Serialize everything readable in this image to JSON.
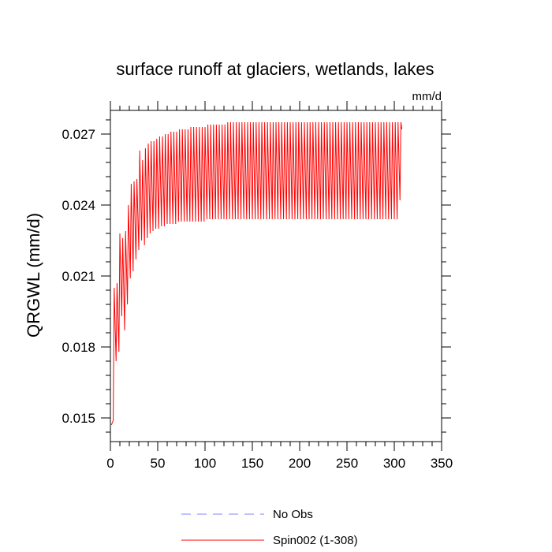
{
  "chart_data": {
    "type": "line",
    "title": "surface runoff at glaciers, wetlands, lakes",
    "units_label": "mm/d",
    "ylabel": "QRGWL  (mm/d)",
    "xlabel": "",
    "xlim": [
      0,
      350
    ],
    "ylim": [
      0.014,
      0.028
    ],
    "x_ticks": [
      0,
      50,
      100,
      150,
      200,
      250,
      300,
      350
    ],
    "x_tick_labels": [
      "0",
      "50",
      "100",
      "150",
      "200",
      "250",
      "300",
      "350"
    ],
    "y_ticks": [
      0.015,
      0.018,
      0.021,
      0.024,
      0.027
    ],
    "y_tick_labels": [
      "0.015",
      "0.018",
      "0.021",
      "0.024",
      "0.027"
    ],
    "grid": false,
    "legend_position": "bottom-center",
    "series": [
      {
        "name": "No Obs",
        "color": "#8080ff",
        "dash": "dashed",
        "x": [],
        "y": []
      },
      {
        "name": "Spin002 (1-308)",
        "color": "#ff0000",
        "dash": "solid",
        "x": [
          1,
          3,
          4,
          6,
          7,
          9,
          10,
          12,
          13,
          15,
          16,
          18,
          19,
          21,
          22,
          24,
          25,
          27,
          28,
          30,
          31,
          33,
          34,
          36,
          37,
          39,
          40,
          42,
          43,
          45,
          46,
          48,
          49,
          51,
          52,
          54,
          55,
          57,
          58,
          60,
          61,
          63,
          64,
          66,
          67,
          69,
          70,
          72,
          73,
          75,
          76,
          78,
          79,
          81,
          82,
          84,
          85,
          87,
          88,
          90,
          91,
          93,
          94,
          96,
          97,
          99,
          100,
          102,
          103,
          105,
          106,
          108,
          109,
          111,
          112,
          114,
          115,
          117,
          118,
          120,
          121,
          123,
          124,
          126,
          127,
          129,
          130,
          132,
          133,
          135,
          136,
          138,
          139,
          141,
          142,
          144,
          145,
          147,
          148,
          150,
          151,
          153,
          154,
          156,
          157,
          159,
          160,
          162,
          163,
          165,
          166,
          168,
          169,
          171,
          172,
          174,
          175,
          177,
          178,
          180,
          181,
          183,
          184,
          186,
          187,
          189,
          190,
          192,
          193,
          195,
          196,
          198,
          199,
          201,
          202,
          204,
          205,
          207,
          208,
          210,
          211,
          213,
          214,
          216,
          217,
          219,
          220,
          222,
          223,
          225,
          226,
          228,
          229,
          231,
          232,
          234,
          235,
          237,
          238,
          240,
          241,
          243,
          244,
          246,
          247,
          249,
          250,
          252,
          253,
          255,
          256,
          258,
          259,
          261,
          262,
          264,
          265,
          267,
          268,
          270,
          271,
          273,
          274,
          276,
          277,
          279,
          280,
          282,
          283,
          285,
          286,
          288,
          289,
          291,
          292,
          294,
          295,
          297,
          298,
          300,
          301,
          303,
          304,
          306,
          307,
          308
        ],
        "y": [
          0.0147,
          0.0149,
          0.0205,
          0.0174,
          0.0207,
          0.0178,
          0.0228,
          0.0193,
          0.0226,
          0.0187,
          0.0229,
          0.0198,
          0.024,
          0.0209,
          0.0249,
          0.0212,
          0.025,
          0.0217,
          0.0251,
          0.0221,
          0.0263,
          0.0225,
          0.0259,
          0.0223,
          0.0264,
          0.0226,
          0.0266,
          0.0228,
          0.0267,
          0.0229,
          0.0267,
          0.023,
          0.0268,
          0.023,
          0.0269,
          0.0231,
          0.0269,
          0.0231,
          0.027,
          0.0232,
          0.027,
          0.0232,
          0.0271,
          0.0232,
          0.0271,
          0.0232,
          0.0271,
          0.0233,
          0.0272,
          0.0233,
          0.0272,
          0.0233,
          0.0272,
          0.0233,
          0.0272,
          0.0233,
          0.0273,
          0.0233,
          0.0273,
          0.0233,
          0.0273,
          0.0233,
          0.0273,
          0.0233,
          0.0273,
          0.0233,
          0.0273,
          0.0234,
          0.0274,
          0.0234,
          0.0274,
          0.0234,
          0.0274,
          0.0234,
          0.0274,
          0.0234,
          0.0274,
          0.0234,
          0.0274,
          0.0234,
          0.0274,
          0.0234,
          0.0275,
          0.0234,
          0.0275,
          0.0234,
          0.0275,
          0.0234,
          0.0275,
          0.0234,
          0.0275,
          0.0234,
          0.0275,
          0.0234,
          0.0275,
          0.0234,
          0.0275,
          0.0234,
          0.0275,
          0.0234,
          0.0275,
          0.0234,
          0.0275,
          0.0234,
          0.0275,
          0.0234,
          0.0275,
          0.0234,
          0.0275,
          0.0234,
          0.0275,
          0.0234,
          0.0275,
          0.0234,
          0.0275,
          0.0234,
          0.0275,
          0.0234,
          0.0275,
          0.0234,
          0.0275,
          0.0234,
          0.0275,
          0.0234,
          0.0275,
          0.0234,
          0.0275,
          0.0234,
          0.0275,
          0.0234,
          0.0275,
          0.0234,
          0.0275,
          0.0234,
          0.0275,
          0.0234,
          0.0275,
          0.0234,
          0.0275,
          0.0234,
          0.0275,
          0.0234,
          0.0275,
          0.0234,
          0.0275,
          0.0234,
          0.0275,
          0.0234,
          0.0275,
          0.0234,
          0.0275,
          0.0234,
          0.0275,
          0.0234,
          0.0275,
          0.0234,
          0.0275,
          0.0234,
          0.0275,
          0.0234,
          0.0275,
          0.0234,
          0.0275,
          0.0234,
          0.0275,
          0.0234,
          0.0275,
          0.0234,
          0.0275,
          0.0234,
          0.0275,
          0.0234,
          0.0275,
          0.0234,
          0.0275,
          0.0234,
          0.0275,
          0.0234,
          0.0275,
          0.0234,
          0.0275,
          0.0234,
          0.0275,
          0.0234,
          0.0275,
          0.0234,
          0.0275,
          0.0234,
          0.0275,
          0.0234,
          0.0275,
          0.0234,
          0.0275,
          0.0234,
          0.0275,
          0.0234,
          0.0275,
          0.0234,
          0.0275,
          0.0234,
          0.0275,
          0.0234,
          0.0275,
          0.0242,
          0.0275,
          0.0272
        ]
      }
    ]
  }
}
